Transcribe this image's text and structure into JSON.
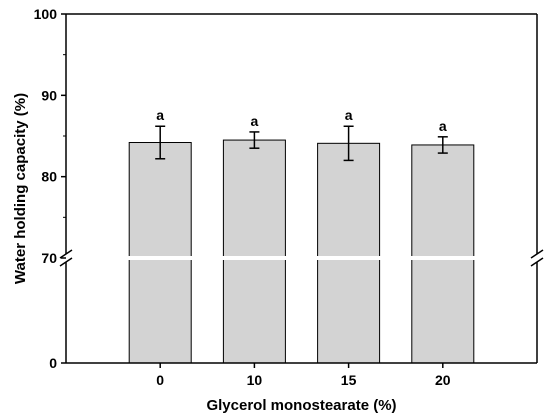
{
  "chart_data": {
    "type": "bar",
    "xlabel": "Glycerol monostearate (%)",
    "ylabel": "Water holding capacity (%)",
    "categories": [
      "0",
      "10",
      "15",
      "20"
    ],
    "values": [
      84.2,
      84.5,
      84.1,
      83.9
    ],
    "errors": [
      2.0,
      1.0,
      2.1,
      1.0
    ],
    "significance_labels": [
      "a",
      "a",
      "a",
      "a"
    ],
    "y_axis": {
      "broken": true,
      "lower_segment": {
        "range": [
          0,
          70
        ],
        "ticks": [
          "0"
        ]
      },
      "upper_segment": {
        "range": [
          70,
          100
        ],
        "ticks": [
          "70",
          "80",
          "90",
          "100"
        ]
      }
    },
    "bar_color": "#d3d3d3",
    "bar_edge_color": "#000000",
    "grid": false,
    "legend": "none"
  }
}
